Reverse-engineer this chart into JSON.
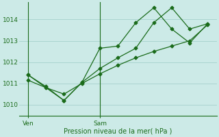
{
  "xlabel": "Pression niveau de la mer( hPa )",
  "background_color": "#cceae7",
  "grid_color": "#aad4d0",
  "line_color": "#1a6b1a",
  "ylim": [
    1009.5,
    1014.8
  ],
  "yticks": [
    1010,
    1011,
    1012,
    1013,
    1014
  ],
  "xlim": [
    0,
    22
  ],
  "ven_x": 1,
  "sam_x": 9,
  "vline_x": [
    1,
    9
  ],
  "series1_x": [
    1,
    3,
    5,
    7,
    9,
    11,
    13,
    15,
    17,
    19,
    21
  ],
  "series1_y": [
    1011.4,
    1010.85,
    1010.2,
    1011.05,
    1012.65,
    1012.75,
    1013.85,
    1014.55,
    1013.55,
    1012.9,
    1013.8
  ],
  "series2_x": [
    1,
    5,
    7,
    9,
    11,
    13,
    15,
    17,
    19,
    21
  ],
  "series2_y": [
    1011.4,
    1010.2,
    1011.05,
    1011.7,
    1012.2,
    1012.65,
    1013.85,
    1014.55,
    1013.55,
    1013.8
  ],
  "series3_x": [
    1,
    3,
    5,
    7,
    9,
    11,
    13,
    15,
    17,
    19,
    21
  ],
  "series3_y": [
    1011.15,
    1010.8,
    1010.5,
    1011.0,
    1011.45,
    1011.85,
    1012.2,
    1012.5,
    1012.75,
    1013.0,
    1013.75
  ],
  "ven_tick_x": 1,
  "sam_tick_x": 9
}
